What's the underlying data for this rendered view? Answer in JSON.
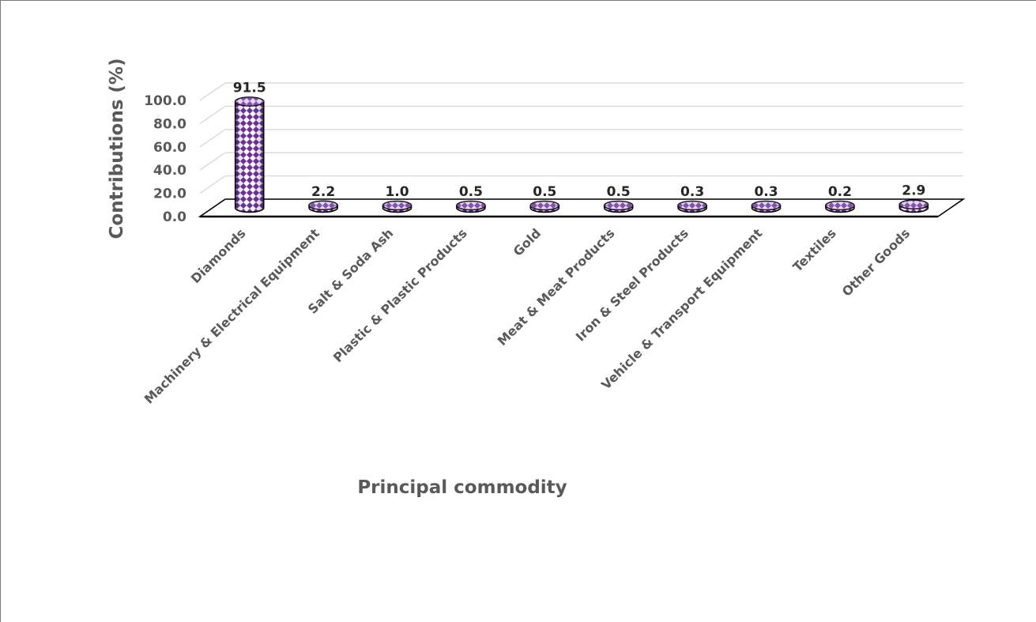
{
  "chart_data": {
    "type": "bar",
    "title": "",
    "xlabel": "Principal commodity",
    "ylabel": "Contributions (%)",
    "ylim": [
      0,
      100
    ],
    "yticks": [
      "0.0",
      "20.0",
      "40.0",
      "60.0",
      "80.0",
      "100.0"
    ],
    "categories": [
      "Diamonds",
      "Machinery & Electrical Equipment",
      "Salt & Soda Ash",
      "Plastic & Plastic Products",
      "Gold",
      "Meat & Meat Products",
      "Iron & Steel Products",
      "Vehicle & Transport Equipment",
      "Textiles",
      "Other Goods"
    ],
    "values": [
      91.5,
      2.2,
      1.0,
      0.5,
      0.5,
      0.5,
      0.3,
      0.3,
      0.2,
      2.9
    ],
    "data_labels": [
      "91.5",
      "2.2",
      "1.0",
      "0.5",
      "0.5",
      "0.5",
      "0.3",
      "0.3",
      "0.2",
      "2.9"
    ],
    "bar_style": "3d-cylinder",
    "grid": true,
    "legend": "none",
    "colors": {
      "bar": "#7030a0",
      "bar_light": "#ffffff",
      "grid": "#d9d9d9",
      "text": "#595959",
      "label": "#262626"
    }
  }
}
